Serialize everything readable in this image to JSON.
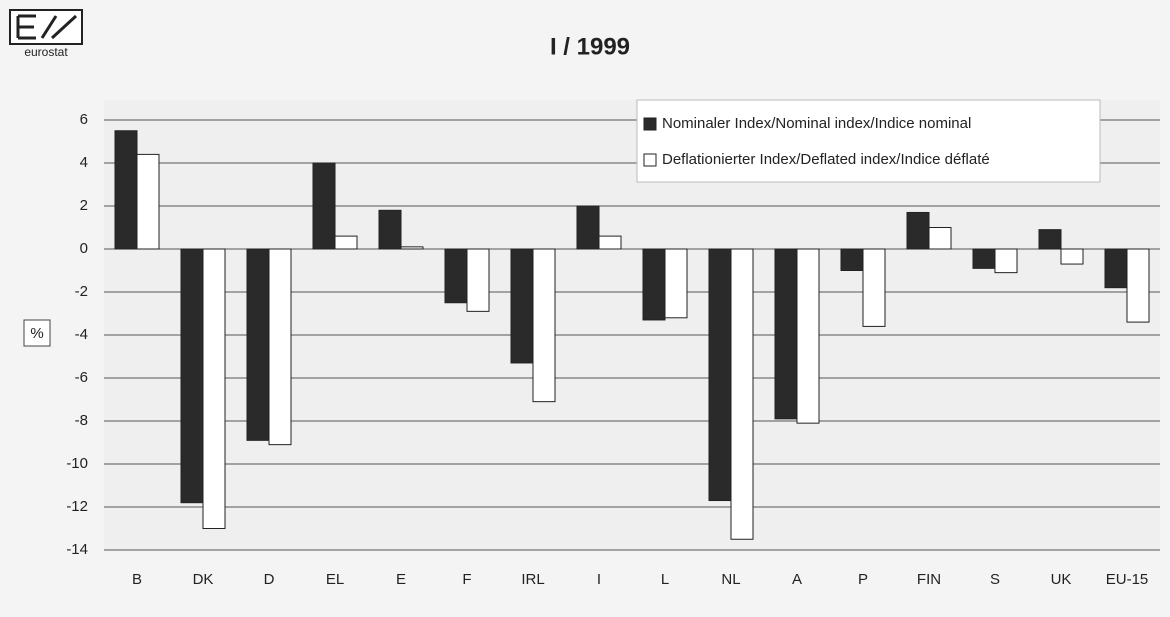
{
  "logo": "eurostat",
  "chart_data": {
    "type": "bar",
    "title": "I / 1999",
    "y_label": "%",
    "categories": [
      "B",
      "DK",
      "D",
      "EL",
      "E",
      "F",
      "IRL",
      "I",
      "L",
      "NL",
      "A",
      "P",
      "FIN",
      "S",
      "UK",
      "EU-15"
    ],
    "series": [
      {
        "name": "Nominaler Index/Nominal index/Indice nominal",
        "color": "#2a2a2a",
        "values": [
          5.5,
          -11.8,
          -8.9,
          4.0,
          1.8,
          -2.5,
          -5.3,
          2.0,
          -3.3,
          -11.7,
          -7.9,
          -1.0,
          1.7,
          -0.9,
          0.9,
          -1.8
        ]
      },
      {
        "name": "Deflationierter Index/Deflated index/Indice déflaté",
        "color": "#ffffff",
        "values": [
          4.4,
          -13.0,
          -9.1,
          0.6,
          0.1,
          -2.9,
          -7.1,
          0.6,
          -3.2,
          -13.5,
          -8.1,
          -3.6,
          1.0,
          -1.1,
          -0.7,
          -3.4
        ]
      }
    ],
    "ylim": [
      -14,
      6
    ],
    "yticks": [
      -14,
      -12,
      -10,
      -8,
      -6,
      -4,
      -2,
      0,
      2,
      4,
      6
    ],
    "grid": true,
    "legend": "top-right"
  }
}
